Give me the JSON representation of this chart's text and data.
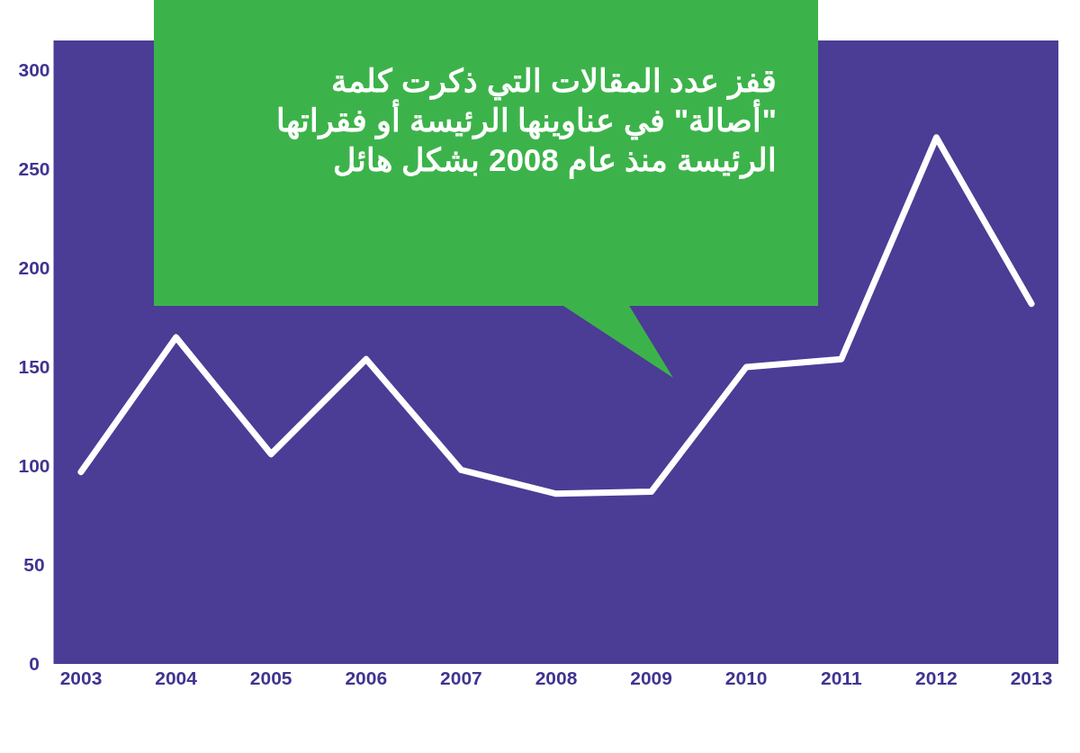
{
  "chart_data": {
    "type": "line",
    "title": "قفز عدد المقالات التي ذكرت كلمة \"أصالة\" في عناوينها الرئيسة أو فقراتها الرئيسة منذ عام 2008 بشكل هائل",
    "categories": [
      "2003",
      "2004",
      "2005",
      "2006",
      "2007",
      "2008",
      "2009",
      "2010",
      "2011",
      "2012",
      "2013"
    ],
    "series": [
      {
        "color": "#ffffff",
        "values": [
          97,
          165,
          106,
          154,
          98,
          86,
          87,
          150,
          154,
          266,
          182
        ]
      }
    ],
    "ylim": [
      0,
      315
    ],
    "yticks": [
      0,
      50,
      100,
      150,
      200,
      250,
      300
    ],
    "marker": "none",
    "line_style": "solid"
  }
}
